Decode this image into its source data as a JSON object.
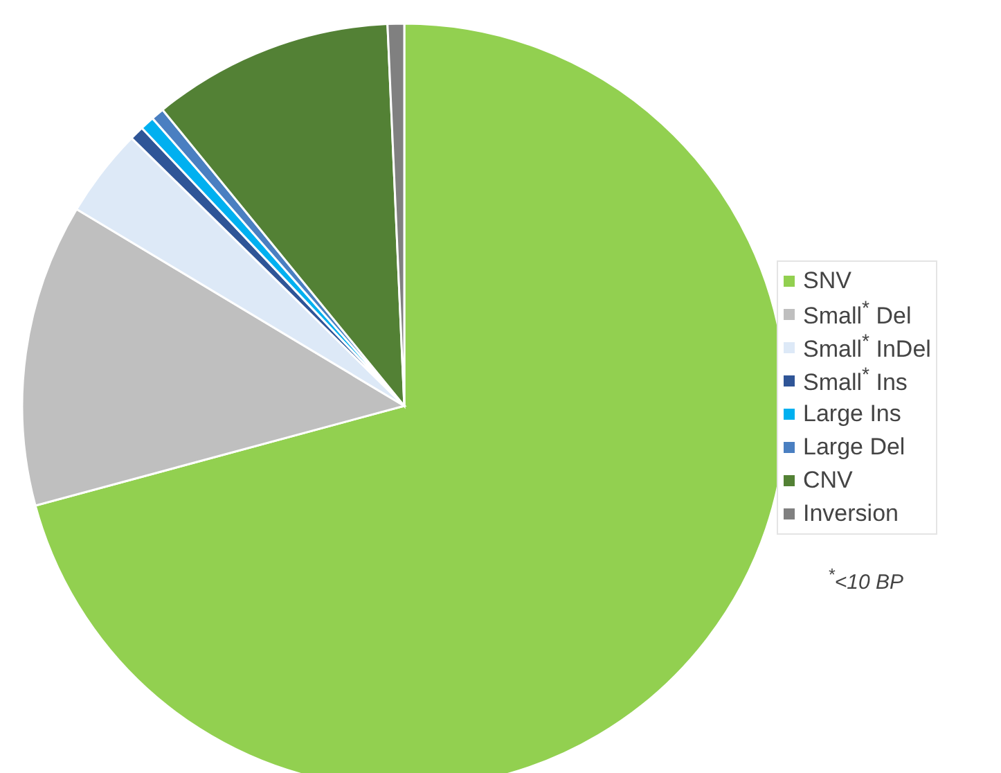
{
  "chart_data": {
    "type": "pie",
    "categories": [
      "SNV",
      "Small$^{*}$ Del",
      "Small$^{*}$ InDel",
      "Small$^{*}$ Ins",
      "Large Ins",
      "Large Del",
      "CNV",
      "Inversion"
    ],
    "values": [
      70.8,
      12.8,
      3.75,
      0.6,
      0.6,
      0.55,
      10.2,
      0.7
    ],
    "colors": [
      "#92d050",
      "#bfbfbf",
      "#dde9f7",
      "#2f5597",
      "#00b0f0",
      "#4a7fc1",
      "#538135",
      "#808080"
    ],
    "legend": "right",
    "annotations": [
      "$^{*}$<10 BP"
    ]
  }
}
